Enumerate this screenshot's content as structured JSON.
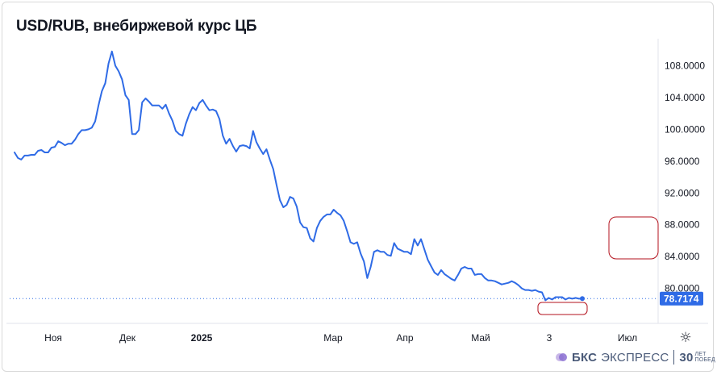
{
  "title": "USD/RUB, внебиржевой курс ЦБ",
  "price_tag": "78.7174",
  "logo": {
    "brand_bold": "БКС",
    "brand_rest": "ЭКСПРЕСС",
    "years": "30",
    "years_caption_1": "ЛЕТ",
    "years_caption_2": "ПОБЕД"
  },
  "colors": {
    "line": "#2f6be6",
    "annotation": "#b3111c",
    "price_tag_bg": "#2f6be6",
    "dotted": "#2f6be6"
  },
  "chart_data": {
    "type": "line",
    "title": "USD/RUB, внебиржевой курс ЦБ",
    "xlabel": "",
    "ylabel": "",
    "ylim": [
      75.6,
      111.4
    ],
    "y_ticks": [
      "108.0000",
      "104.0000",
      "100.0000",
      "96.0000",
      "92.0000",
      "88.0000",
      "84.0000",
      "80.0000"
    ],
    "y_tick_values": [
      108,
      104,
      100,
      96,
      92,
      88,
      84,
      80
    ],
    "x_ticks": [
      {
        "label": "Ноя",
        "bold": false
      },
      {
        "label": "Дек",
        "bold": false
      },
      {
        "label": "2025",
        "bold": true
      },
      {
        "label": "Мар",
        "bold": false
      },
      {
        "label": "Апр",
        "bold": false
      },
      {
        "label": "Май",
        "bold": false
      },
      {
        "label": "3",
        "bold": false
      },
      {
        "label": "Июл",
        "bold": false
      }
    ],
    "last_value": 78.7174,
    "grid": false,
    "series": [
      {
        "values": [
          97.1,
          96.4,
          96.2,
          96.7,
          96.7,
          96.8,
          96.8,
          97.3,
          97.4,
          97.1,
          97.1,
          97.7,
          97.8,
          98.5,
          98.3,
          98.0,
          98.2,
          98.2,
          98.7,
          99.4,
          99.9,
          99.9,
          100.0,
          100.2,
          101.0,
          103.0,
          104.8,
          105.8,
          108.3,
          109.8,
          108.0,
          107.3,
          106.3,
          104.3,
          103.7,
          99.4,
          99.4,
          99.9,
          103.4,
          103.9,
          103.5,
          103.0,
          103.0,
          103.0,
          102.6,
          103.1,
          102.0,
          101.1,
          99.8,
          99.4,
          99.2,
          100.7,
          101.9,
          102.8,
          102.4,
          103.3,
          103.7,
          103.0,
          102.4,
          102.5,
          102.3,
          101.3,
          99.2,
          98.2,
          98.8,
          97.9,
          97.2,
          97.9,
          98.0,
          97.9,
          97.6,
          99.8,
          98.4,
          97.6,
          96.9,
          97.5,
          96.2,
          95.0,
          93.0,
          91.1,
          90.2,
          90.5,
          91.5,
          91.3,
          90.3,
          88.3,
          87.7,
          87.6,
          86.3,
          85.9,
          87.6,
          88.5,
          89.0,
          89.3,
          89.3,
          89.9,
          89.5,
          89.2,
          88.5,
          87.2,
          85.8,
          85.6,
          85.8,
          84.4,
          83.4,
          81.3,
          82.7,
          84.6,
          84.8,
          84.6,
          84.6,
          84.2,
          84.1,
          85.7,
          85.0,
          84.8,
          84.6,
          84.6,
          84.3,
          86.2,
          85.4,
          86.2,
          84.9,
          83.6,
          82.8,
          82.0,
          81.7,
          82.3,
          81.8,
          81.5,
          81.2,
          81.0,
          81.7,
          82.5,
          82.7,
          82.5,
          82.5,
          81.7,
          81.8,
          81.8,
          81.3,
          81.0,
          81.0,
          80.9,
          80.7,
          80.5,
          80.6,
          80.7,
          80.9,
          80.7,
          80.4,
          80.0,
          79.8,
          79.8,
          79.7,
          79.8,
          79.6,
          79.5,
          78.5,
          78.8,
          78.6,
          78.9,
          78.9,
          78.9,
          78.6,
          78.8,
          78.7,
          78.8,
          78.7,
          78.7174
        ]
      }
    ],
    "annotations": [
      {
        "label": "",
        "shape": "rounded-rect"
      },
      {
        "label": "",
        "shape": "rounded-rect"
      }
    ]
  }
}
